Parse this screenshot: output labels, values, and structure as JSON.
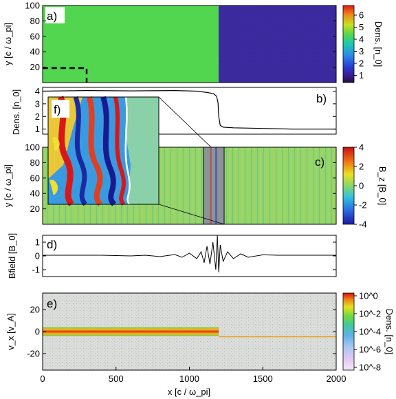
{
  "chart_data": [
    {
      "panel": "a)",
      "type": "heatmap",
      "ylabel": "y [c / ω_pi]",
      "ylim": [
        0,
        100
      ],
      "yticks": [
        "20",
        "40",
        "60",
        "80",
        "100"
      ],
      "colorbar": {
        "label": "Dens. [n_0]",
        "range": [
          0.4,
          6.8
        ],
        "ticks": [
          "1",
          "2",
          "3",
          "4",
          "5",
          "6"
        ]
      },
      "regions": [
        {
          "x_range": [
            0,
            1200
          ],
          "value": 4.0
        },
        {
          "x_range": [
            1200,
            2000
          ],
          "value": 1.0
        }
      ],
      "annotation": "dashed box x 0–300, y 0–17"
    },
    {
      "panel": "b)",
      "type": "line",
      "ylabel": "Dens. [n_0]",
      "ylim": [
        0.6,
        4.3
      ],
      "yticks": [
        "1",
        "2",
        "3",
        "4"
      ],
      "x": [
        0,
        300,
        600,
        900,
        1050,
        1120,
        1165,
        1185,
        1195,
        1200,
        1210,
        1230,
        1300,
        1500,
        1700,
        2000
      ],
      "y": [
        4.0,
        4.05,
        4.02,
        4.05,
        4.0,
        3.9,
        3.8,
        3.6,
        3.1,
        2.0,
        1.3,
        1.15,
        1.1,
        1.05,
        1.0,
        1.0
      ]
    },
    {
      "panel": "c)",
      "type": "heatmap",
      "ylabel": "y [c / ω_pi]",
      "ylim": [
        0,
        100
      ],
      "yticks": [
        "20",
        "40",
        "60",
        "80",
        "100"
      ],
      "colorbar": {
        "label": "B_z [B_0]",
        "range": [
          -4,
          4
        ],
        "ticks": [
          "-4",
          "-2",
          "0",
          "2",
          "4"
        ]
      },
      "highlight_band": [
        1100,
        1225
      ],
      "inset": {
        "label": "f)"
      }
    },
    {
      "panel": "d)",
      "type": "line",
      "ylabel": "Bfield [B_0]",
      "ylim": [
        -1.5,
        1.5
      ],
      "yticks": [
        "-1",
        "0",
        "1"
      ],
      "x": [
        0,
        200,
        400,
        600,
        700,
        800,
        900,
        950,
        1000,
        1050,
        1080,
        1100,
        1120,
        1140,
        1160,
        1180,
        1190,
        1200,
        1210,
        1230,
        1260,
        1300,
        1350,
        1400,
        1500,
        1600,
        1800,
        2000
      ],
      "y": [
        0.05,
        0.05,
        0.05,
        0.0,
        0.05,
        -0.05,
        0.1,
        -0.1,
        0.2,
        -0.2,
        0.3,
        -0.5,
        0.7,
        -0.6,
        1.0,
        -1.0,
        1.5,
        -1.2,
        0.8,
        -0.4,
        0.3,
        -0.2,
        0.15,
        -0.1,
        0.08,
        0.05,
        0.05,
        0.05
      ]
    },
    {
      "panel": "e)",
      "type": "heatmap",
      "xlabel": "x [c / ω_pi]",
      "ylabel": "v_x [v_A]",
      "xlim": [
        0,
        2000
      ],
      "ylim": [
        -35,
        35
      ],
      "xticks": [
        "0",
        "500",
        "1000",
        "1500",
        "2000"
      ],
      "yticks": [
        "-20",
        "0",
        "20"
      ],
      "colorbar": {
        "label": "Dens. [n_0]",
        "scale": "log",
        "range": [
          1e-09,
          3
        ],
        "ticks": [
          "10^0",
          "10^-2",
          "10^-4",
          "10^-6",
          "10^-8"
        ]
      },
      "beams": [
        {
          "x_range": [
            0,
            1200
          ],
          "v_center": 0,
          "v_halfwidth": 4
        },
        {
          "x_range": [
            1200,
            2000
          ],
          "v_center": -5,
          "v_halfwidth": 0.5
        }
      ]
    }
  ]
}
